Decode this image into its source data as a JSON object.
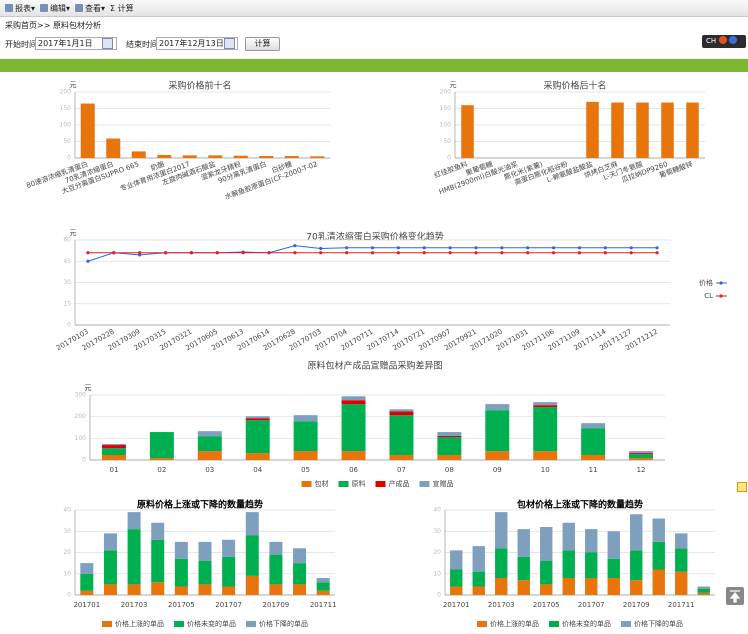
{
  "toolbar": [
    "报表",
    "编辑",
    "查看",
    "计算"
  ],
  "breadcrumb": "采购首页>> 原料包材分析",
  "filters": {
    "start_label": "开始时间",
    "start_value": "2017年1月1日",
    "end_label": "结束时间",
    "end_value": "2017年12月13日",
    "button": "计算"
  },
  "lang_badge": "CH",
  "chart_data": [
    {
      "type": "bar",
      "title": "采购价格前十名",
      "y_unit": "元",
      "color": "#e8740c",
      "grid": true,
      "categories": [
        "80速溶浓缩乳清蛋白",
        "70乳清浓缩蛋白",
        "大豆分离蛋白SUPRO 665",
        "奶酪",
        "专业体育用浓蛋白2017",
        "左旋肉碱酒石酸盐",
        "混紫龙牙精粉",
        "90分离乳清蛋白",
        "白砂糖",
        "水解鱼胶原蛋白(CF-2000-T-02"
      ],
      "values": [
        165,
        59,
        20,
        9,
        8,
        8,
        7,
        6,
        6,
        5
      ],
      "ylim": [
        0,
        200
      ],
      "yticks": [
        0,
        50,
        100,
        150,
        200
      ]
    },
    {
      "type": "bar",
      "title": "采购价格后十名",
      "y_unit": "元",
      "color": "#e8740c",
      "grid": true,
      "categories": [
        "红佳胶鱼料",
        "聚葡萄糖",
        "HMB(2900ml)白酸光油浆",
        "膨化米(紫薯)",
        "高蛋白膨化稻谷粉",
        "L-赖氨酸盐酸盐",
        "烘烤白芝麻",
        "L-天门冬氨酸",
        "瓜拉纳DP9260",
        "葡萄糖酸锌"
      ],
      "values": [
        160,
        0,
        0,
        0,
        0,
        170,
        168,
        168,
        168,
        168
      ],
      "ylim": [
        0,
        200
      ],
      "yticks": [
        0,
        50,
        100,
        150,
        200
      ]
    },
    {
      "type": "line",
      "title": "70乳清浓缩蛋白采购价格变化趋势",
      "y_unit": "元",
      "grid": true,
      "legend": "right",
      "categories": [
        "20170103",
        "20170228",
        "20170309",
        "20170315",
        "20170321",
        "20170605",
        "20170613",
        "20170614",
        "20170628",
        "20170703",
        "20170704",
        "20170711",
        "20170714",
        "20170721",
        "20170907",
        "20170921",
        "20171020",
        "20171031",
        "20171106",
        "20171109",
        "20171114",
        "20171127",
        "20171212"
      ],
      "series": [
        {
          "name": "价格",
          "color": "#3366dd",
          "values": [
            45,
            51,
            49.5,
            51,
            51,
            51,
            51.5,
            51,
            56,
            54,
            54.5,
            54.5,
            54.5,
            54.5,
            54.5,
            54.5,
            54.5,
            54.5,
            54.5,
            54.5,
            54.5,
            54.5,
            54.5
          ]
        },
        {
          "name": "CL",
          "color": "#dd2222",
          "values": [
            51,
            51,
            51,
            51,
            51,
            51,
            51,
            51,
            51,
            51,
            51,
            51,
            51,
            51,
            51,
            51,
            51,
            51,
            51,
            51,
            51,
            51,
            51
          ]
        }
      ],
      "ylim": [
        0,
        60
      ],
      "yticks": [
        0,
        15,
        30,
        45,
        60
      ]
    },
    {
      "type": "bar",
      "stacked": true,
      "title": "原料包材产成品宣赠品采购差异图",
      "y_unit": "元",
      "grid": true,
      "legend": "bottom",
      "categories": [
        "01",
        "02",
        "03",
        "04",
        "05",
        "06",
        "07",
        "08",
        "09",
        "10",
        "11",
        "12"
      ],
      "series": [
        {
          "name": "包材",
          "color": "#e8740c",
          "values": [
            23,
            9,
            41,
            32,
            41,
            41,
            23,
            23,
            41,
            41,
            23,
            9
          ]
        },
        {
          "name": "原料",
          "color": "#00b050",
          "values": [
            32,
            120,
            69,
            152,
            138,
            217,
            184,
            83,
            189,
            203,
            124,
            18
          ]
        },
        {
          "name": "产成品",
          "color": "#e00000",
          "values": [
            14,
            0,
            0,
            9,
            0,
            18,
            18,
            5,
            0,
            9,
            0,
            5
          ]
        },
        {
          "name": "宣赠品",
          "color": "#7f9fbf",
          "values": [
            5,
            0,
            23,
            9,
            28,
            18,
            9,
            18,
            28,
            14,
            23,
            9
          ]
        }
      ],
      "ylim": [
        0,
        300
      ],
      "yticks": [
        0,
        100,
        200,
        300
      ]
    },
    {
      "type": "bar",
      "stacked": true,
      "title": "原料价格上涨或下降的数量趋势",
      "grid": true,
      "legend": "bottom",
      "categories": [
        "201701",
        null,
        "201703",
        null,
        "201705",
        null,
        "201707",
        null,
        "201709",
        null,
        "201711"
      ],
      "series": [
        {
          "name": "价格上涨的单品",
          "color": "#e8740c",
          "values": [
            2,
            5,
            5,
            6,
            4,
            5,
            4,
            9,
            5,
            5,
            2
          ]
        },
        {
          "name": "价格未变的单品",
          "color": "#00b050",
          "values": [
            8,
            16,
            26,
            20,
            13,
            11,
            14,
            19,
            14,
            10,
            4
          ]
        },
        {
          "name": "价格下降的单品",
          "color": "#7f9fbf",
          "values": [
            5,
            8,
            8,
            8,
            8,
            9,
            8,
            11,
            6,
            7,
            2
          ]
        }
      ],
      "ylim": [
        0,
        40
      ],
      "yticks": [
        0,
        10,
        20,
        30,
        40
      ]
    },
    {
      "type": "bar",
      "stacked": true,
      "title": "包材价格上涨或下降的数量趋势",
      "grid": true,
      "legend": "bottom",
      "categories": [
        "201701",
        null,
        "201703",
        null,
        "201705",
        null,
        "201707",
        null,
        "201709",
        null,
        "201711",
        null
      ],
      "series": [
        {
          "name": "价格上涨的单品",
          "color": "#e8740c",
          "values": [
            4,
            4,
            8,
            7,
            5,
            8,
            8,
            8,
            7,
            12,
            11,
            1
          ]
        },
        {
          "name": "价格未变的单品",
          "color": "#00b050",
          "values": [
            8,
            7,
            14,
            11,
            11,
            13,
            12,
            9,
            14,
            13,
            11,
            2
          ]
        },
        {
          "name": "价格下降的单品",
          "color": "#7f9fbf",
          "values": [
            9,
            12,
            17,
            13,
            16,
            13,
            11,
            13,
            17,
            11,
            7,
            1
          ]
        }
      ],
      "ylim": [
        0,
        40
      ],
      "yticks": [
        0,
        10,
        20,
        30,
        40
      ]
    }
  ]
}
